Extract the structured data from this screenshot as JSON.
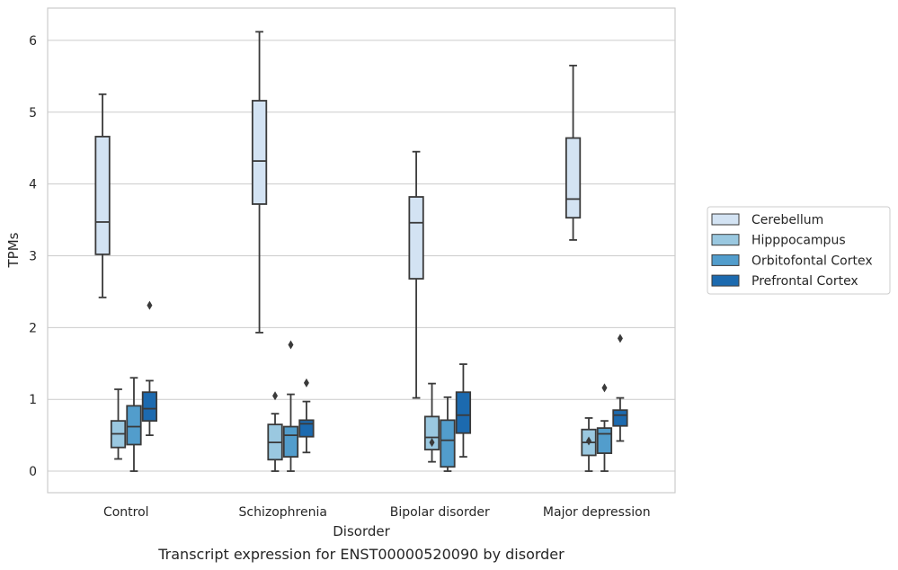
{
  "chart_data": {
    "type": "boxplot",
    "title": "Transcript expression for ENST00000520090 by disorder",
    "xlabel": "Disorder",
    "ylabel": "TPMs",
    "ylim": [
      -0.3,
      6.45
    ],
    "yticks": [
      "0",
      "1",
      "2",
      "3",
      "4",
      "5",
      "6"
    ],
    "grid": "horizontal",
    "legend_position": "right",
    "categories": [
      "Control",
      "Schizophrenia",
      "Bipolar disorder",
      "Major depression"
    ],
    "series": [
      {
        "name": "Cerebellum",
        "color": "#d3e3f3",
        "boxes": [
          {
            "whislo": 2.42,
            "q1": 3.02,
            "med": 3.47,
            "q3": 4.66,
            "whishi": 5.25,
            "fliers": []
          },
          {
            "whislo": 1.93,
            "q1": 3.72,
            "med": 4.32,
            "q3": 5.16,
            "whishi": 6.12,
            "fliers": []
          },
          {
            "whislo": 1.02,
            "q1": 2.68,
            "med": 3.46,
            "q3": 3.82,
            "whishi": 4.45,
            "fliers": []
          },
          {
            "whislo": 3.22,
            "q1": 3.53,
            "med": 3.79,
            "q3": 4.64,
            "whishi": 5.65,
            "fliers": []
          }
        ]
      },
      {
        "name": "Hipppocampus",
        "color": "#9ac8e0",
        "boxes": [
          {
            "whislo": 0.17,
            "q1": 0.33,
            "med": 0.52,
            "q3": 0.7,
            "whishi": 1.14,
            "fliers": []
          },
          {
            "whislo": 0.0,
            "q1": 0.16,
            "med": 0.4,
            "q3": 0.65,
            "whishi": 0.8,
            "fliers": [
              1.05
            ]
          },
          {
            "whislo": 0.13,
            "q1": 0.3,
            "med": 0.47,
            "q3": 0.76,
            "whishi": 1.22,
            "fliers": [
              0.4
            ]
          },
          {
            "whislo": 0.0,
            "q1": 0.22,
            "med": 0.4,
            "q3": 0.58,
            "whishi": 0.74,
            "fliers": [
              0.42
            ]
          }
        ]
      },
      {
        "name": "Orbitofontal Cortex",
        "color": "#529dcc",
        "boxes": [
          {
            "whislo": 0.0,
            "q1": 0.37,
            "med": 0.62,
            "q3": 0.91,
            "whishi": 1.3,
            "fliers": []
          },
          {
            "whislo": 0.0,
            "q1": 0.2,
            "med": 0.5,
            "q3": 0.62,
            "whishi": 1.07,
            "fliers": [
              1.76
            ]
          },
          {
            "whislo": 0.0,
            "q1": 0.06,
            "med": 0.43,
            "q3": 0.71,
            "whishi": 1.03,
            "fliers": []
          },
          {
            "whislo": 0.0,
            "q1": 0.25,
            "med": 0.52,
            "q3": 0.6,
            "whishi": 0.7,
            "fliers": [
              1.16
            ]
          }
        ]
      },
      {
        "name": "Prefrontal Cortex",
        "color": "#1c6aaf",
        "boxes": [
          {
            "whislo": 0.5,
            "q1": 0.7,
            "med": 0.87,
            "q3": 1.1,
            "whishi": 1.26,
            "fliers": [
              2.31
            ]
          },
          {
            "whislo": 0.26,
            "q1": 0.48,
            "med": 0.66,
            "q3": 0.71,
            "whishi": 0.97,
            "fliers": [
              1.23
            ]
          },
          {
            "whislo": 0.2,
            "q1": 0.53,
            "med": 0.78,
            "q3": 1.1,
            "whishi": 1.49,
            "fliers": []
          },
          {
            "whislo": 0.42,
            "q1": 0.63,
            "med": 0.78,
            "q3": 0.85,
            "whishi": 1.02,
            "fliers": [
              1.85
            ]
          }
        ]
      }
    ]
  }
}
